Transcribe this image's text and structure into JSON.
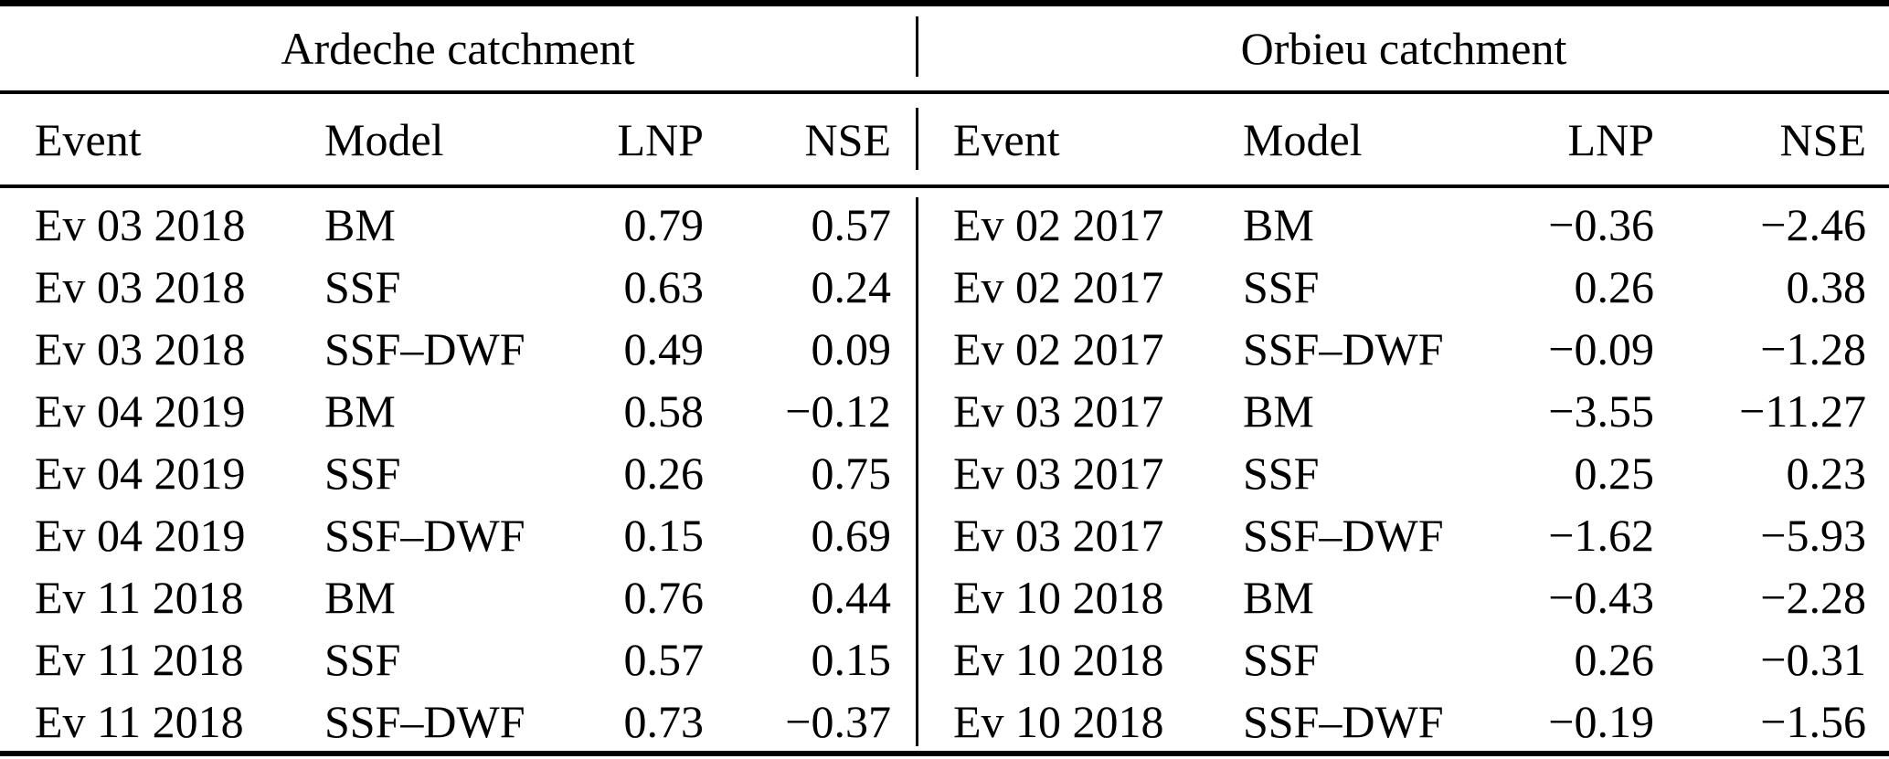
{
  "colors": {
    "text": "#000000",
    "background": "#ffffff",
    "rule": "#000000"
  },
  "table": {
    "groups": [
      {
        "title": "Ardeche catchment",
        "headers": {
          "event": "Event",
          "model": "Model",
          "lnp": "LNP",
          "nse": "NSE"
        },
        "rows": [
          {
            "event": "Ev 03 2018",
            "model": "BM",
            "lnp": "0.79",
            "nse": "0.57"
          },
          {
            "event": "Ev 03 2018",
            "model": "SSF",
            "lnp": "0.63",
            "nse": "0.24"
          },
          {
            "event": "Ev 03 2018",
            "model": "SSF–DWF",
            "lnp": "0.49",
            "nse": "0.09"
          },
          {
            "event": "Ev 04 2019",
            "model": "BM",
            "lnp": "0.58",
            "nse": "−0.12"
          },
          {
            "event": "Ev 04 2019",
            "model": "SSF",
            "lnp": "0.26",
            "nse": "0.75"
          },
          {
            "event": "Ev 04 2019",
            "model": "SSF–DWF",
            "lnp": "0.15",
            "nse": "0.69"
          },
          {
            "event": "Ev 11 2018",
            "model": "BM",
            "lnp": "0.76",
            "nse": "0.44"
          },
          {
            "event": "Ev 11 2018",
            "model": "SSF",
            "lnp": "0.57",
            "nse": "0.15"
          },
          {
            "event": "Ev 11 2018",
            "model": "SSF–DWF",
            "lnp": "0.73",
            "nse": "−0.37"
          }
        ]
      },
      {
        "title": "Orbieu catchment",
        "headers": {
          "event": "Event",
          "model": "Model",
          "lnp": "LNP",
          "nse": "NSE"
        },
        "rows": [
          {
            "event": "Ev 02 2017",
            "model": "BM",
            "lnp": "−0.36",
            "nse": "−2.46"
          },
          {
            "event": "Ev 02 2017",
            "model": "SSF",
            "lnp": "0.26",
            "nse": "0.38"
          },
          {
            "event": "Ev 02 2017",
            "model": "SSF–DWF",
            "lnp": "−0.09",
            "nse": "−1.28"
          },
          {
            "event": "Ev 03 2017",
            "model": "BM",
            "lnp": "−3.55",
            "nse": "−11.27"
          },
          {
            "event": "Ev 03 2017",
            "model": "SSF",
            "lnp": "0.25",
            "nse": "0.23"
          },
          {
            "event": "Ev 03 2017",
            "model": "SSF–DWF",
            "lnp": "−1.62",
            "nse": "−5.93"
          },
          {
            "event": "Ev 10 2018",
            "model": "BM",
            "lnp": "−0.43",
            "nse": "−2.28"
          },
          {
            "event": "Ev 10 2018",
            "model": "SSF",
            "lnp": "0.26",
            "nse": "−0.31"
          },
          {
            "event": "Ev 10 2018",
            "model": "SSF–DWF",
            "lnp": "−0.19",
            "nse": "−1.56"
          }
        ]
      }
    ]
  }
}
